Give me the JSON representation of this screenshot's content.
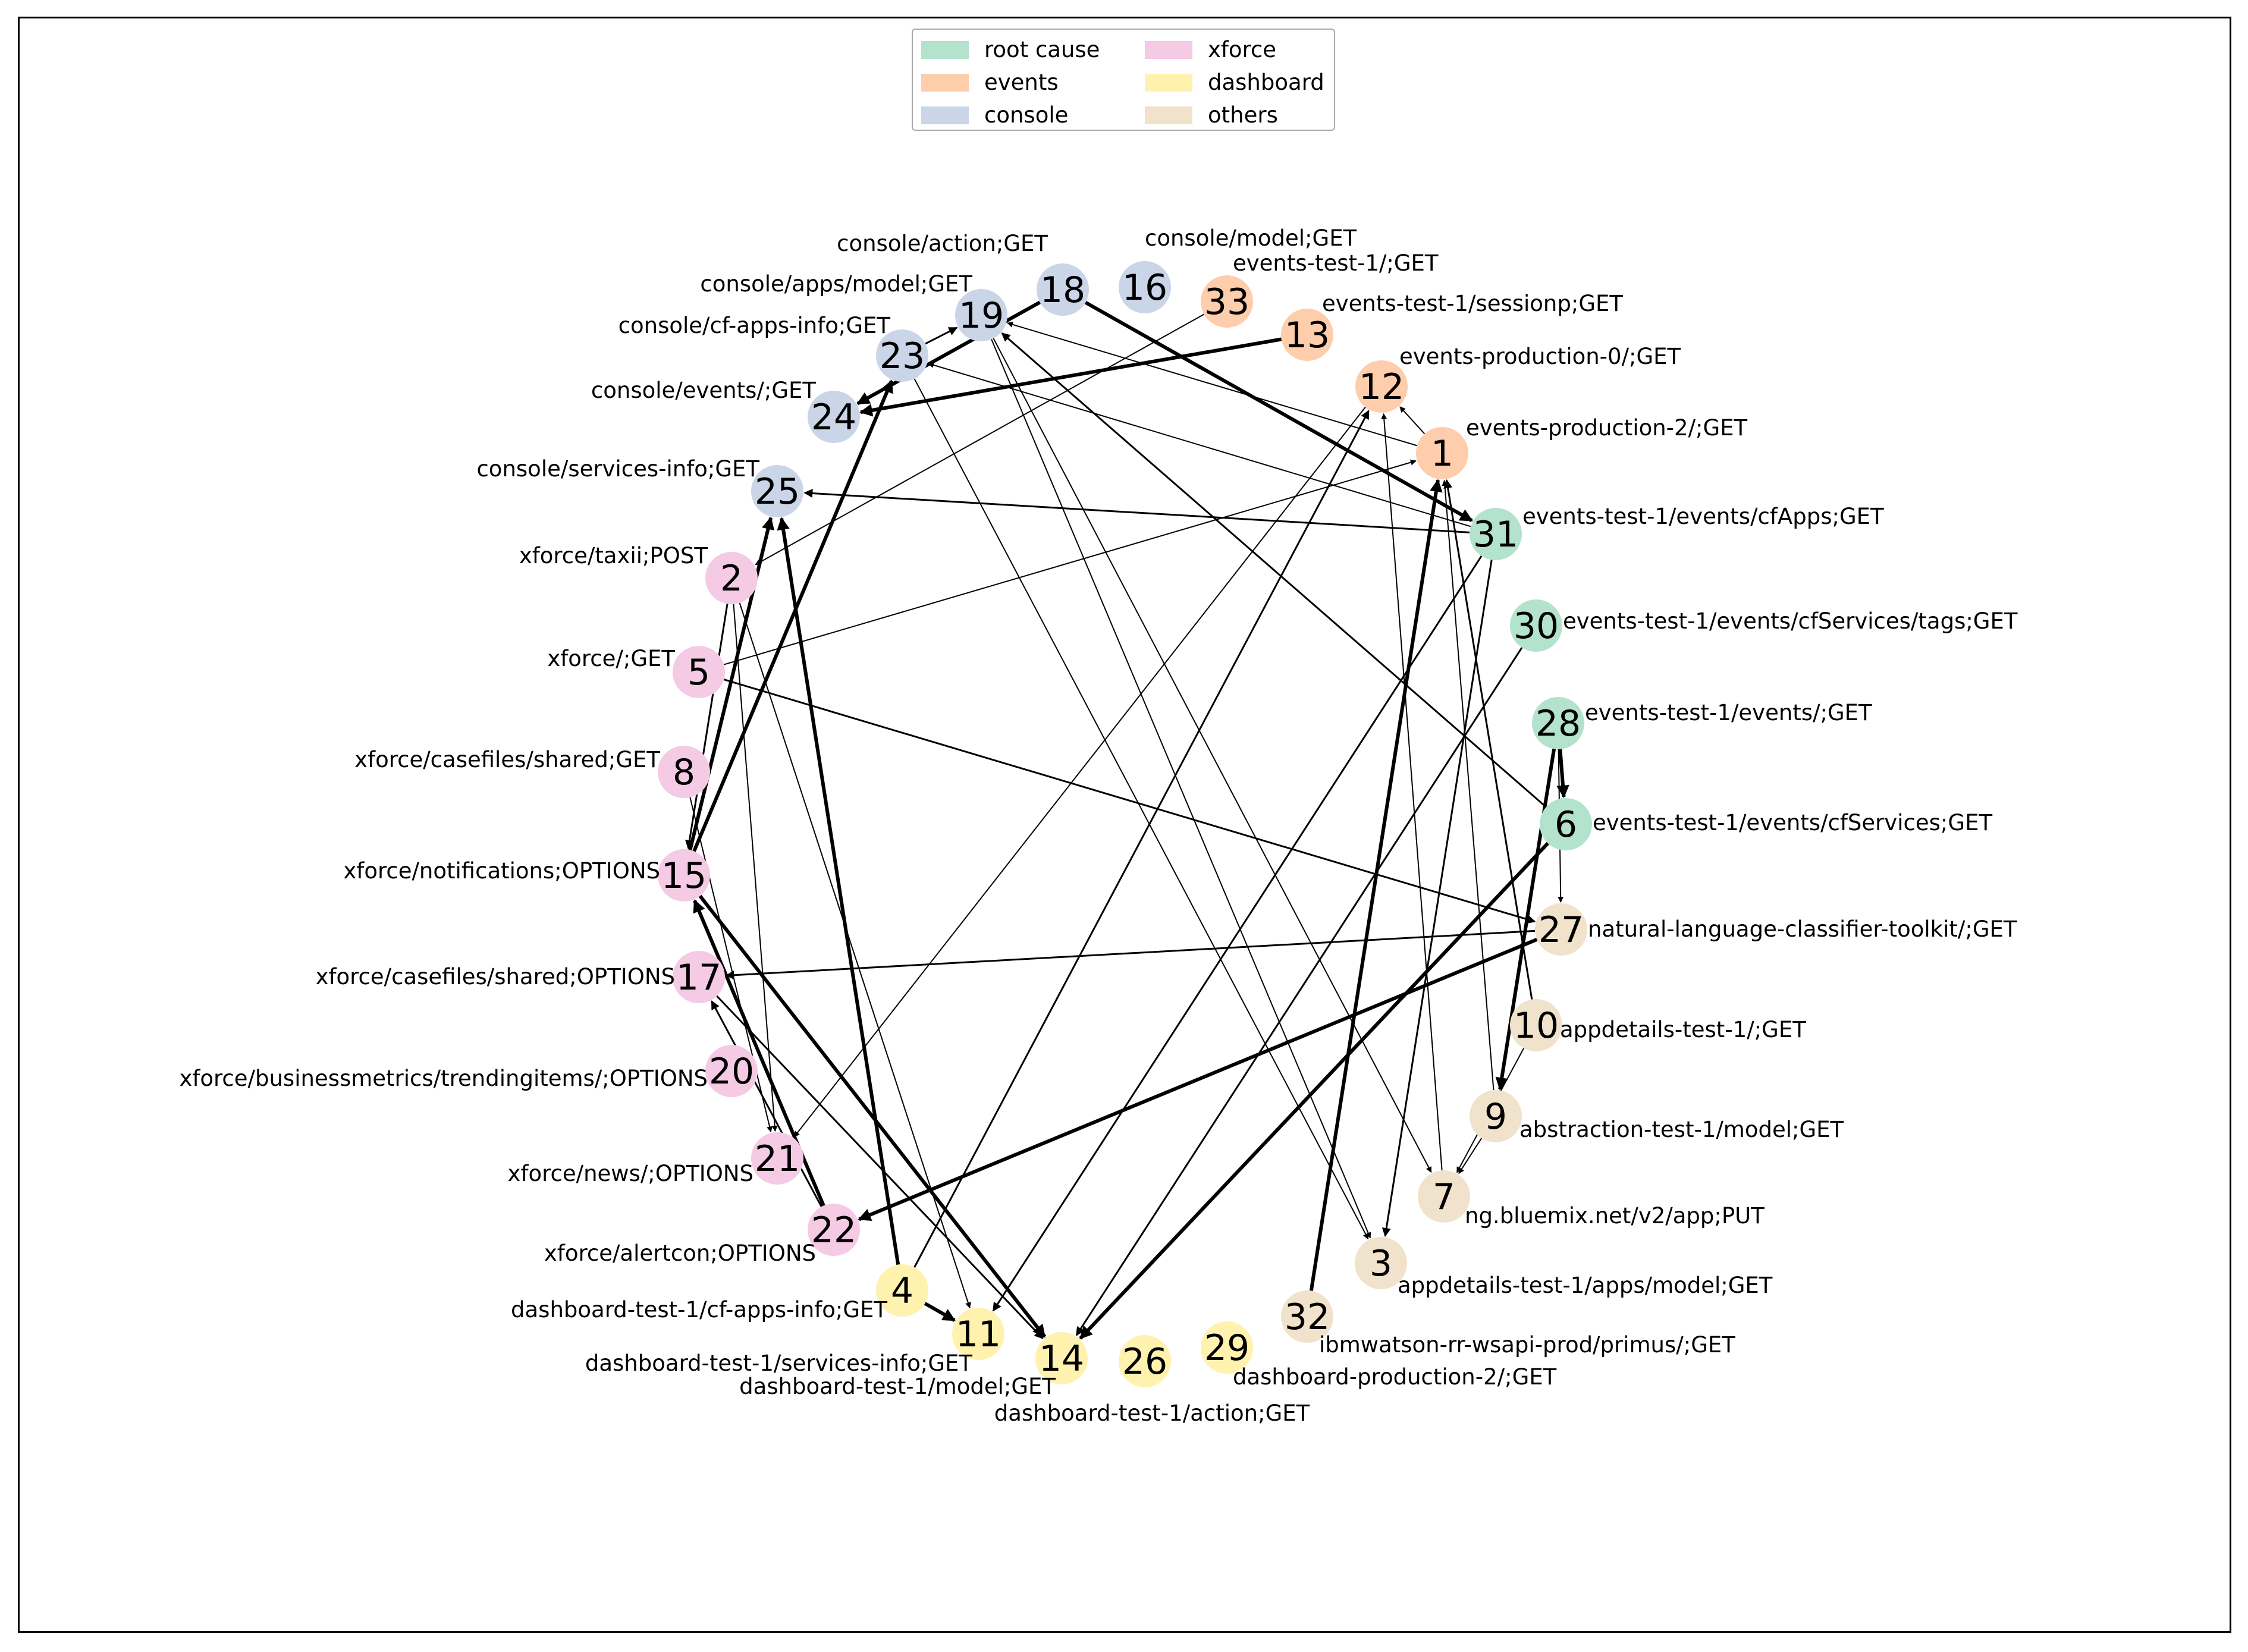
{
  "legend": {
    "items": [
      {
        "label": "root cause",
        "color": "#b3e2cd"
      },
      {
        "label": "events",
        "color": "#fdcdac"
      },
      {
        "label": "console",
        "color": "#cbd5e8"
      },
      {
        "label": "xforce",
        "color": "#f4cae4"
      },
      {
        "label": "dashboard",
        "color": "#fff2ae"
      },
      {
        "label": "others",
        "color": "#f1e2cc"
      }
    ]
  },
  "nodes": [
    {
      "id": "1",
      "label": "events-production-2/;GET",
      "group": "events"
    },
    {
      "id": "2",
      "label": "xforce/taxii;POST",
      "group": "xforce"
    },
    {
      "id": "3",
      "label": "appdetails-test-1/apps/model;GET",
      "group": "others"
    },
    {
      "id": "4",
      "label": "dashboard-test-1/cf-apps-info;GET",
      "group": "dashboard"
    },
    {
      "id": "5",
      "label": "xforce/;GET",
      "group": "xforce"
    },
    {
      "id": "6",
      "label": "events-test-1/events/cfServices;GET",
      "group": "root cause"
    },
    {
      "id": "7",
      "label": "ng.bluemix.net/v2/app;PUT",
      "group": "others"
    },
    {
      "id": "8",
      "label": "xforce/casefiles/shared;GET",
      "group": "xforce"
    },
    {
      "id": "9",
      "label": "abstraction-test-1/model;GET",
      "group": "others"
    },
    {
      "id": "10",
      "label": "appdetails-test-1/;GET",
      "group": "others"
    },
    {
      "id": "11",
      "label": "dashboard-test-1/services-info;GET",
      "group": "dashboard"
    },
    {
      "id": "12",
      "label": "events-production-0/;GET",
      "group": "events"
    },
    {
      "id": "13",
      "label": "events-test-1/sessionp;GET",
      "group": "events"
    },
    {
      "id": "14",
      "label": "dashboard-test-1/model;GET",
      "group": "dashboard"
    },
    {
      "id": "15",
      "label": "xforce/notifications;OPTIONS",
      "group": "xforce"
    },
    {
      "id": "16",
      "label": "console/model;GET",
      "group": "console"
    },
    {
      "id": "17",
      "label": "xforce/casefiles/shared;OPTIONS",
      "group": "xforce"
    },
    {
      "id": "18",
      "label": "console/action;GET",
      "group": "console"
    },
    {
      "id": "19",
      "label": "console/apps/model;GET",
      "group": "console"
    },
    {
      "id": "20",
      "label": "xforce/businessmetrics/trendingitems/;OPTIONS",
      "group": "xforce"
    },
    {
      "id": "21",
      "label": "xforce/news/;OPTIONS",
      "group": "xforce"
    },
    {
      "id": "22",
      "label": "xforce/alertcon;OPTIONS",
      "group": "xforce"
    },
    {
      "id": "23",
      "label": "console/cf-apps-info;GET",
      "group": "console"
    },
    {
      "id": "24",
      "label": "console/events/;GET",
      "group": "console"
    },
    {
      "id": "25",
      "label": "console/services-info;GET",
      "group": "console"
    },
    {
      "id": "26",
      "label": "dashboard-test-1/action;GET",
      "group": "dashboard"
    },
    {
      "id": "27",
      "label": "natural-language-classifier-toolkit/;GET",
      "group": "others"
    },
    {
      "id": "28",
      "label": "events-test-1/events/;GET",
      "group": "root cause"
    },
    {
      "id": "29",
      "label": "dashboard-production-2/;GET",
      "group": "dashboard"
    },
    {
      "id": "30",
      "label": "events-test-1/events/cfServices/tags;GET",
      "group": "root cause"
    },
    {
      "id": "31",
      "label": "events-test-1/events/cfApps;GET",
      "group": "root cause"
    },
    {
      "id": "32",
      "label": "ibmwatson-rr-wsapi-prod/primus/;GET",
      "group": "others"
    },
    {
      "id": "33",
      "label": "events-test-1/;GET",
      "group": "events"
    }
  ],
  "edges": [
    {
      "from": "18",
      "to": "31",
      "weight": "heavy"
    },
    {
      "from": "18",
      "to": "24",
      "weight": "heavy"
    },
    {
      "from": "23",
      "to": "19",
      "weight": "normal"
    },
    {
      "from": "13",
      "to": "24",
      "weight": "heavy"
    },
    {
      "from": "15",
      "to": "23",
      "weight": "heavy"
    },
    {
      "from": "15",
      "to": "25",
      "weight": "heavy"
    },
    {
      "from": "2",
      "to": "15",
      "weight": "normal"
    },
    {
      "from": "33",
      "to": "2",
      "weight": "light"
    },
    {
      "from": "31",
      "to": "25",
      "weight": "normal"
    },
    {
      "from": "31",
      "to": "23",
      "weight": "light"
    },
    {
      "from": "1",
      "to": "19",
      "weight": "light"
    },
    {
      "from": "1",
      "to": "12",
      "weight": "light"
    },
    {
      "from": "5",
      "to": "1",
      "weight": "light"
    },
    {
      "from": "5",
      "to": "27",
      "weight": "normal"
    },
    {
      "from": "4",
      "to": "25",
      "weight": "heavy"
    },
    {
      "from": "4",
      "to": "11",
      "weight": "heavy"
    },
    {
      "from": "4",
      "to": "12",
      "weight": "normal"
    },
    {
      "from": "22",
      "to": "15",
      "weight": "heavy"
    },
    {
      "from": "22",
      "to": "17",
      "weight": "normal"
    },
    {
      "from": "27",
      "to": "17",
      "weight": "normal"
    },
    {
      "from": "27",
      "to": "22",
      "weight": "heavy"
    },
    {
      "from": "15",
      "to": "14",
      "weight": "heavy"
    },
    {
      "from": "28",
      "to": "6",
      "weight": "heavy"
    },
    {
      "from": "28",
      "to": "9",
      "weight": "heavy"
    },
    {
      "from": "28",
      "to": "27",
      "weight": "light"
    },
    {
      "from": "6",
      "to": "19",
      "weight": "normal"
    },
    {
      "from": "6",
      "to": "14",
      "weight": "heavy"
    },
    {
      "from": "32",
      "to": "1",
      "weight": "heavy"
    },
    {
      "from": "30",
      "to": "14",
      "weight": "normal"
    },
    {
      "from": "31",
      "to": "11",
      "weight": "normal"
    },
    {
      "from": "31",
      "to": "3",
      "weight": "normal"
    },
    {
      "from": "23",
      "to": "3",
      "weight": "light"
    },
    {
      "from": "19",
      "to": "3",
      "weight": "light"
    },
    {
      "from": "19",
      "to": "7",
      "weight": "light"
    },
    {
      "from": "10",
      "to": "1",
      "weight": "normal"
    },
    {
      "from": "9",
      "to": "1",
      "weight": "light"
    },
    {
      "from": "9",
      "to": "7",
      "weight": "light"
    },
    {
      "from": "7",
      "to": "12",
      "weight": "light"
    },
    {
      "from": "12",
      "to": "21",
      "weight": "light"
    },
    {
      "from": "2",
      "to": "11",
      "weight": "light"
    },
    {
      "from": "2",
      "to": "21",
      "weight": "light"
    },
    {
      "from": "8",
      "to": "21",
      "weight": "light"
    },
    {
      "from": "17",
      "to": "14",
      "weight": "normal"
    },
    {
      "from": "10",
      "to": "7",
      "weight": "light"
    }
  ]
}
